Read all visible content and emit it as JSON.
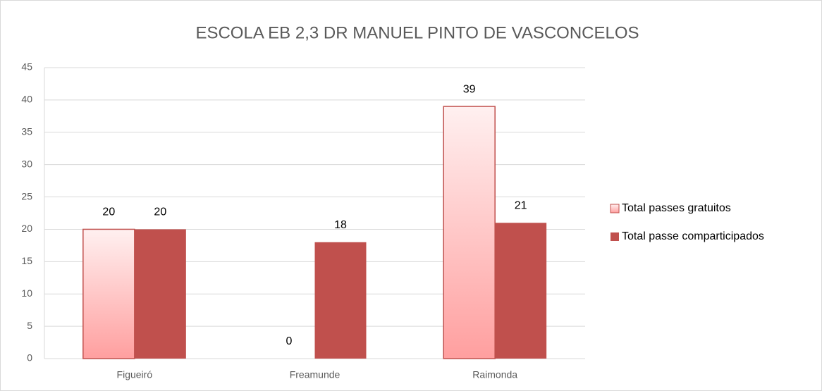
{
  "chart_data": {
    "type": "bar",
    "title": "ESCOLA EB 2,3 DR MANUEL PINTO DE VASCONCELOS",
    "categories": [
      "Figueiró",
      "Freamunde",
      "Raimonda"
    ],
    "series": [
      {
        "name": "Total passes gratuitos",
        "color": "#ff9f9f",
        "values": [
          20,
          0,
          39
        ]
      },
      {
        "name": "Total passe comparticipados",
        "color": "#c0504d",
        "values": [
          20,
          18,
          21
        ]
      }
    ],
    "ylim": [
      0,
      45
    ],
    "yticks": [
      0,
      5,
      10,
      15,
      20,
      25,
      30,
      35,
      40,
      45
    ],
    "grid": true,
    "legend": "right"
  }
}
